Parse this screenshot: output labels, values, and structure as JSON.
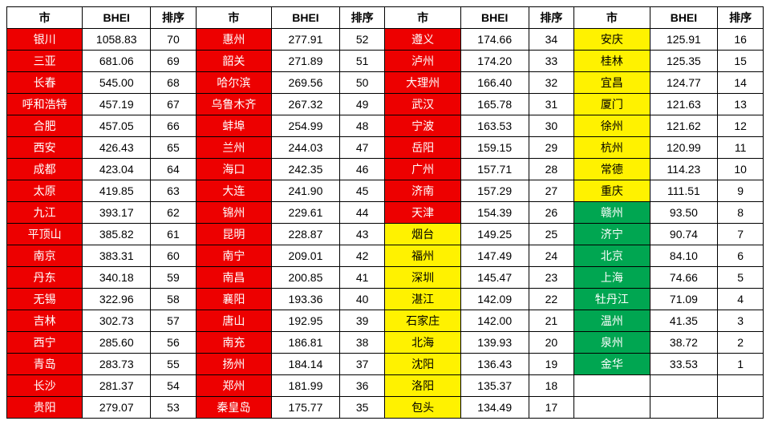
{
  "headers": {
    "city": "市",
    "bhei": "BHEI",
    "rank": "排序"
  },
  "colors": {
    "red": "#ed0000",
    "yellow": "#fff200",
    "green": "#00a651",
    "white": "#ffffff",
    "black": "#000000"
  },
  "columns": [
    {
      "rows": [
        {
          "city": "银川",
          "bhei": "1058.83",
          "rank": "70",
          "bg": "red"
        },
        {
          "city": "三亚",
          "bhei": "681.06",
          "rank": "69",
          "bg": "red"
        },
        {
          "city": "长春",
          "bhei": "545.00",
          "rank": "68",
          "bg": "red"
        },
        {
          "city": "呼和浩特",
          "bhei": "457.19",
          "rank": "67",
          "bg": "red"
        },
        {
          "city": "合肥",
          "bhei": "457.05",
          "rank": "66",
          "bg": "red"
        },
        {
          "city": "西安",
          "bhei": "426.43",
          "rank": "65",
          "bg": "red"
        },
        {
          "city": "成都",
          "bhei": "423.04",
          "rank": "64",
          "bg": "red"
        },
        {
          "city": "太原",
          "bhei": "419.85",
          "rank": "63",
          "bg": "red"
        },
        {
          "city": "九江",
          "bhei": "393.17",
          "rank": "62",
          "bg": "red"
        },
        {
          "city": "平顶山",
          "bhei": "385.82",
          "rank": "61",
          "bg": "red"
        },
        {
          "city": "南京",
          "bhei": "383.31",
          "rank": "60",
          "bg": "red"
        },
        {
          "city": "丹东",
          "bhei": "340.18",
          "rank": "59",
          "bg": "red"
        },
        {
          "city": "无锡",
          "bhei": "322.96",
          "rank": "58",
          "bg": "red"
        },
        {
          "city": "吉林",
          "bhei": "302.73",
          "rank": "57",
          "bg": "red"
        },
        {
          "city": "西宁",
          "bhei": "285.60",
          "rank": "56",
          "bg": "red"
        },
        {
          "city": "青岛",
          "bhei": "283.73",
          "rank": "55",
          "bg": "red"
        },
        {
          "city": "长沙",
          "bhei": "281.37",
          "rank": "54",
          "bg": "red"
        },
        {
          "city": "贵阳",
          "bhei": "279.07",
          "rank": "53",
          "bg": "red"
        }
      ]
    },
    {
      "rows": [
        {
          "city": "惠州",
          "bhei": "277.91",
          "rank": "52",
          "bg": "red"
        },
        {
          "city": "韶关",
          "bhei": "271.89",
          "rank": "51",
          "bg": "red"
        },
        {
          "city": "哈尔滨",
          "bhei": "269.56",
          "rank": "50",
          "bg": "red"
        },
        {
          "city": "乌鲁木齐",
          "bhei": "267.32",
          "rank": "49",
          "bg": "red"
        },
        {
          "city": "蚌埠",
          "bhei": "254.99",
          "rank": "48",
          "bg": "red"
        },
        {
          "city": "兰州",
          "bhei": "244.03",
          "rank": "47",
          "bg": "red"
        },
        {
          "city": "海口",
          "bhei": "242.35",
          "rank": "46",
          "bg": "red"
        },
        {
          "city": "大连",
          "bhei": "241.90",
          "rank": "45",
          "bg": "red"
        },
        {
          "city": "锦州",
          "bhei": "229.61",
          "rank": "44",
          "bg": "red"
        },
        {
          "city": "昆明",
          "bhei": "228.87",
          "rank": "43",
          "bg": "red"
        },
        {
          "city": "南宁",
          "bhei": "209.01",
          "rank": "42",
          "bg": "red"
        },
        {
          "city": "南昌",
          "bhei": "200.85",
          "rank": "41",
          "bg": "red"
        },
        {
          "city": "襄阳",
          "bhei": "193.36",
          "rank": "40",
          "bg": "red"
        },
        {
          "city": "唐山",
          "bhei": "192.95",
          "rank": "39",
          "bg": "red"
        },
        {
          "city": "南充",
          "bhei": "186.81",
          "rank": "38",
          "bg": "red"
        },
        {
          "city": "扬州",
          "bhei": "184.14",
          "rank": "37",
          "bg": "red"
        },
        {
          "city": "郑州",
          "bhei": "181.99",
          "rank": "36",
          "bg": "red"
        },
        {
          "city": "秦皇岛",
          "bhei": "175.77",
          "rank": "35",
          "bg": "red"
        }
      ]
    },
    {
      "rows": [
        {
          "city": "遵义",
          "bhei": "174.66",
          "rank": "34",
          "bg": "red"
        },
        {
          "city": "泸州",
          "bhei": "174.20",
          "rank": "33",
          "bg": "red"
        },
        {
          "city": "大理州",
          "bhei": "166.40",
          "rank": "32",
          "bg": "red"
        },
        {
          "city": "武汉",
          "bhei": "165.78",
          "rank": "31",
          "bg": "red"
        },
        {
          "city": "宁波",
          "bhei": "163.53",
          "rank": "30",
          "bg": "red"
        },
        {
          "city": "岳阳",
          "bhei": "159.15",
          "rank": "29",
          "bg": "red"
        },
        {
          "city": "广州",
          "bhei": "157.71",
          "rank": "28",
          "bg": "red"
        },
        {
          "city": "济南",
          "bhei": "157.29",
          "rank": "27",
          "bg": "red"
        },
        {
          "city": "天津",
          "bhei": "154.39",
          "rank": "26",
          "bg": "red"
        },
        {
          "city": "烟台",
          "bhei": "149.25",
          "rank": "25",
          "bg": "yellow"
        },
        {
          "city": "福州",
          "bhei": "147.49",
          "rank": "24",
          "bg": "yellow"
        },
        {
          "city": "深圳",
          "bhei": "145.47",
          "rank": "23",
          "bg": "yellow"
        },
        {
          "city": "湛江",
          "bhei": "142.09",
          "rank": "22",
          "bg": "yellow"
        },
        {
          "city": "石家庄",
          "bhei": "142.00",
          "rank": "21",
          "bg": "yellow"
        },
        {
          "city": "北海",
          "bhei": "139.93",
          "rank": "20",
          "bg": "yellow"
        },
        {
          "city": "沈阳",
          "bhei": "136.43",
          "rank": "19",
          "bg": "yellow"
        },
        {
          "city": "洛阳",
          "bhei": "135.37",
          "rank": "18",
          "bg": "yellow"
        },
        {
          "city": "包头",
          "bhei": "134.49",
          "rank": "17",
          "bg": "yellow"
        }
      ]
    },
    {
      "rows": [
        {
          "city": "安庆",
          "bhei": "125.91",
          "rank": "16",
          "bg": "yellow"
        },
        {
          "city": "桂林",
          "bhei": "125.35",
          "rank": "15",
          "bg": "yellow"
        },
        {
          "city": "宜昌",
          "bhei": "124.77",
          "rank": "14",
          "bg": "yellow"
        },
        {
          "city": "厦门",
          "bhei": "121.63",
          "rank": "13",
          "bg": "yellow"
        },
        {
          "city": "徐州",
          "bhei": "121.62",
          "rank": "12",
          "bg": "yellow"
        },
        {
          "city": "杭州",
          "bhei": "120.99",
          "rank": "11",
          "bg": "yellow"
        },
        {
          "city": "常德",
          "bhei": "114.23",
          "rank": "10",
          "bg": "yellow"
        },
        {
          "city": "重庆",
          "bhei": "111.51",
          "rank": "9",
          "bg": "yellow"
        },
        {
          "city": "赣州",
          "bhei": "93.50",
          "rank": "8",
          "bg": "green"
        },
        {
          "city": "济宁",
          "bhei": "90.74",
          "rank": "7",
          "bg": "green"
        },
        {
          "city": "北京",
          "bhei": "84.10",
          "rank": "6",
          "bg": "green"
        },
        {
          "city": "上海",
          "bhei": "74.66",
          "rank": "5",
          "bg": "green"
        },
        {
          "city": "牡丹江",
          "bhei": "71.09",
          "rank": "4",
          "bg": "green"
        },
        {
          "city": "温州",
          "bhei": "41.35",
          "rank": "3",
          "bg": "green"
        },
        {
          "city": "泉州",
          "bhei": "38.72",
          "rank": "2",
          "bg": "green"
        },
        {
          "city": "金华",
          "bhei": "33.53",
          "rank": "1",
          "bg": "green"
        },
        {
          "city": "",
          "bhei": "",
          "rank": "",
          "bg": ""
        },
        {
          "city": "",
          "bhei": "",
          "rank": "",
          "bg": ""
        }
      ]
    }
  ]
}
